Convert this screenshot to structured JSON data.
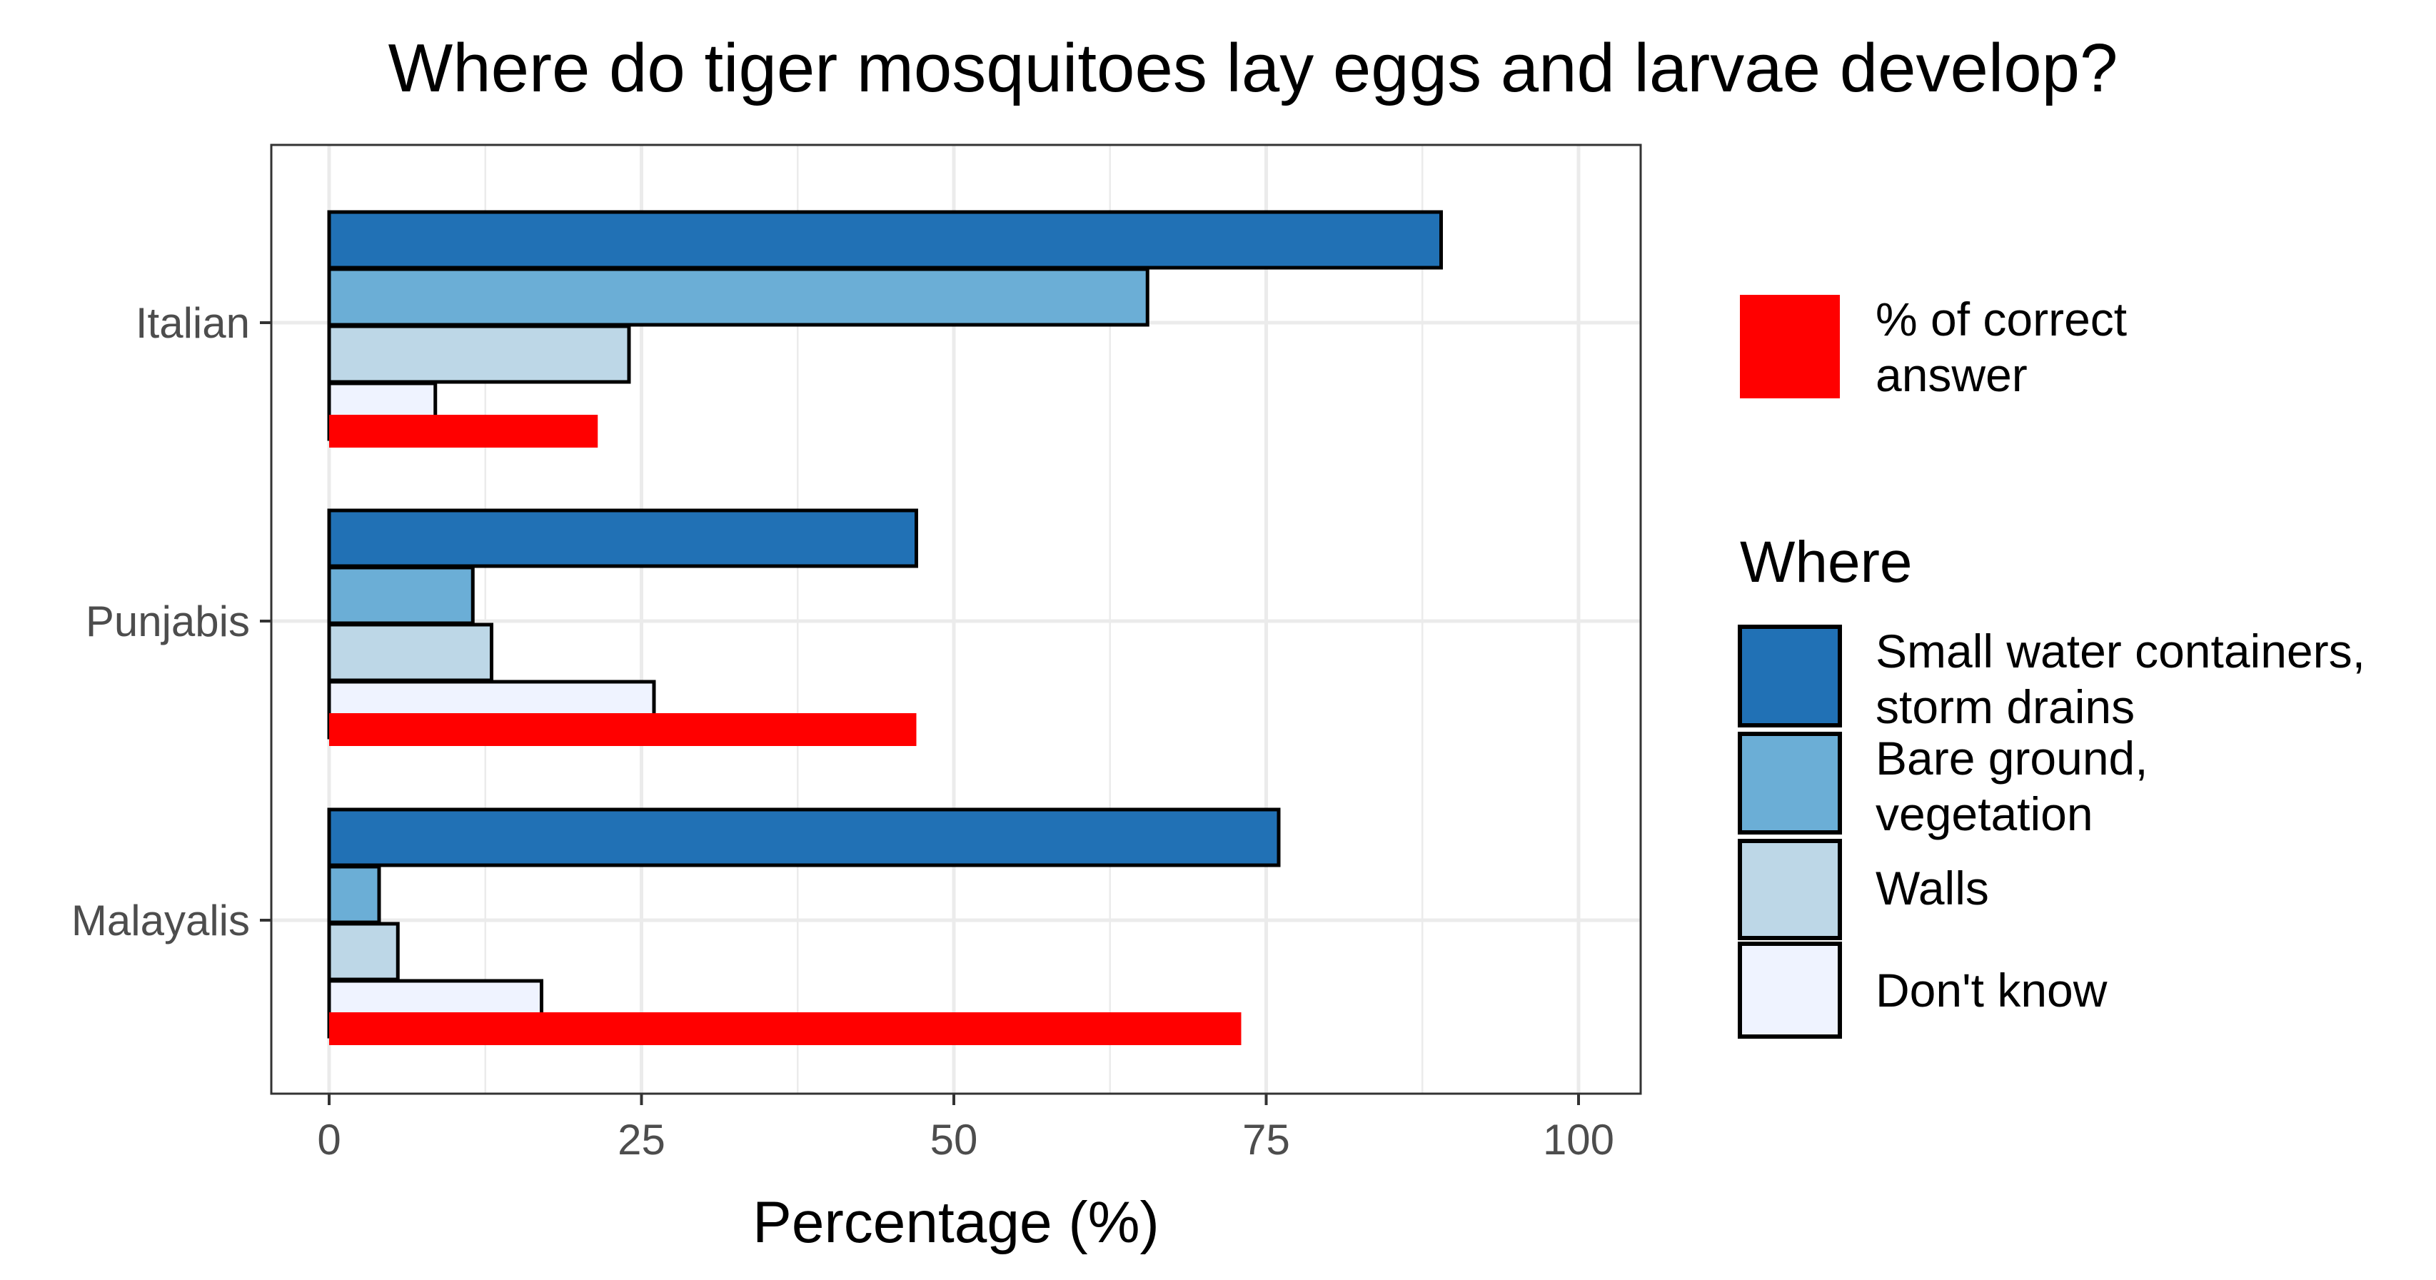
{
  "chart_data": {
    "type": "bar",
    "orientation": "horizontal",
    "title": "Where do tiger mosquitoes lay eggs and larvae develop?",
    "xlabel": "Percentage (%)",
    "ylabel": "",
    "xlim": [
      0,
      100
    ],
    "xticks": [
      "0",
      "25",
      "50",
      "75",
      "100"
    ],
    "grid": true,
    "categories": [
      "Italian",
      "Punjabis",
      "Malayalis"
    ],
    "series": [
      {
        "name": "Small water containers, storm drains",
        "color": "#2171b5",
        "values": [
          89,
          47,
          76
        ]
      },
      {
        "name": "Bare ground, vegetation",
        "color": "#6baed6",
        "values": [
          65.5,
          11.5,
          4
        ]
      },
      {
        "name": "Walls",
        "color": "#bdd7e7",
        "values": [
          24,
          13,
          5.5
        ]
      },
      {
        "name": "Don't know",
        "color": "#eff3ff",
        "values": [
          8.5,
          26,
          17
        ]
      }
    ],
    "correct": {
      "name": "% of correct answer",
      "color": "#ff0000",
      "values": [
        21.5,
        47,
        73
      ]
    },
    "legend": {
      "placement": "right",
      "correct_label_lines": [
        "% of correct",
        "answer"
      ],
      "title": "Where",
      "label_lines": [
        [
          "Small water containers,",
          "storm drains"
        ],
        [
          "Bare ground,",
          "vegetation"
        ],
        [
          "Walls"
        ],
        [
          "Don't know"
        ]
      ]
    }
  }
}
